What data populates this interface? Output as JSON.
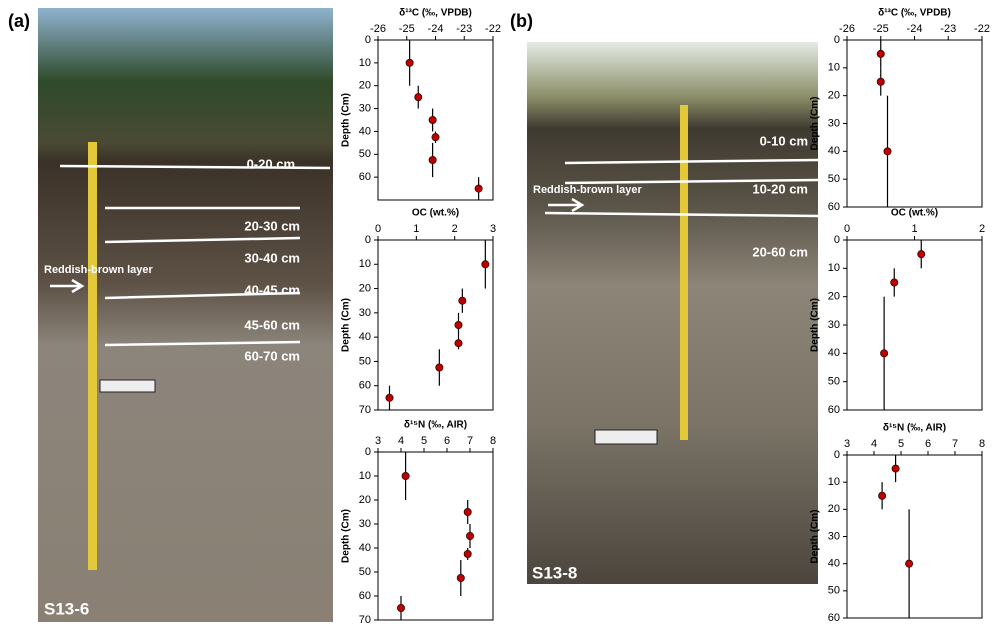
{
  "chart_data": [
    {
      "type": "scatter",
      "x_label": "δ¹³C (‰, VPDB)",
      "y_label": "Depth (Cm)",
      "xlim": [
        -26,
        -22
      ],
      "xticks": [
        -26,
        -25,
        -24,
        -23,
        -22
      ],
      "ylim": [
        0,
        70
      ],
      "yticks": [
        0,
        10,
        20,
        30,
        40,
        50,
        60
      ],
      "series": [
        {
          "color": "#c00000",
          "x": [
            -24.9,
            -24.6,
            -24.1,
            -24.0,
            -24.1,
            -22.5
          ],
          "y": [
            10,
            25,
            35,
            42.5,
            52.5,
            65
          ],
          "yerr": [
            10,
            5,
            5,
            2.5,
            7.5,
            5
          ]
        }
      ]
    },
    {
      "type": "scatter",
      "x_label": "OC (wt.%)",
      "y_label": "Depth (Cm)",
      "xlim": [
        0,
        3
      ],
      "xticks": [
        0,
        1,
        2,
        3
      ],
      "ylim": [
        0,
        70
      ],
      "yticks": [
        0,
        10,
        20,
        30,
        40,
        50,
        60,
        70
      ],
      "series": [
        {
          "color": "#c00000",
          "x": [
            2.8,
            2.2,
            2.1,
            2.1,
            1.6,
            0.3
          ],
          "y": [
            10,
            25,
            35,
            42.5,
            52.5,
            65
          ],
          "yerr": [
            10,
            5,
            5,
            2.5,
            7.5,
            5
          ]
        }
      ]
    },
    {
      "type": "scatter",
      "x_label": "δ¹⁵N (‰, AIR)",
      "y_label": "Depth (Cm)",
      "xlim": [
        3,
        8
      ],
      "xticks": [
        3,
        4,
        5,
        6,
        7,
        8
      ],
      "ylim": [
        0,
        70
      ],
      "yticks": [
        0,
        10,
        20,
        30,
        40,
        50,
        60,
        70
      ],
      "series": [
        {
          "color": "#c00000",
          "x": [
            4.2,
            6.9,
            7.0,
            6.9,
            6.6,
            4.0
          ],
          "y": [
            10,
            25,
            35,
            42.5,
            52.5,
            65
          ],
          "yerr": [
            10,
            5,
            5,
            2.5,
            7.5,
            5
          ]
        }
      ]
    },
    {
      "type": "scatter",
      "x_label": "δ¹³C (‰, VPDB)",
      "y_label": "Depth (Cm)",
      "xlim": [
        -26,
        -22
      ],
      "xticks": [
        -26,
        -25,
        -24,
        -23,
        -22
      ],
      "ylim": [
        0,
        60
      ],
      "yticks": [
        0,
        10,
        20,
        30,
        40,
        50,
        60
      ],
      "series": [
        {
          "color": "#c00000",
          "x": [
            -25.0,
            -25.0,
            -24.8
          ],
          "y": [
            5,
            15,
            40
          ],
          "yerr": [
            5,
            5,
            20
          ]
        }
      ]
    },
    {
      "type": "scatter",
      "x_label": "OC (wt.%)",
      "y_label": "Depth (Cm)",
      "xlim": [
        0,
        2
      ],
      "xticks": [
        0,
        1,
        2
      ],
      "ylim": [
        0,
        60
      ],
      "yticks": [
        0,
        10,
        20,
        30,
        40,
        50,
        60
      ],
      "series": [
        {
          "color": "#c00000",
          "x": [
            1.1,
            0.7,
            0.55
          ],
          "y": [
            5,
            15,
            40
          ],
          "yerr": [
            5,
            5,
            20
          ]
        }
      ]
    },
    {
      "type": "scatter",
      "x_label": "δ¹⁵N (‰, AIR)",
      "y_label": "Depth (Cm)",
      "xlim": [
        3,
        8
      ],
      "xticks": [
        3,
        4,
        5,
        6,
        7,
        8
      ],
      "ylim": [
        0,
        60
      ],
      "yticks": [
        0,
        10,
        20,
        30,
        40,
        50,
        60
      ],
      "series": [
        {
          "color": "#c00000",
          "x": [
            4.8,
            4.3,
            5.3
          ],
          "y": [
            5,
            15,
            40
          ],
          "yerr": [
            5,
            5,
            20
          ]
        }
      ]
    }
  ],
  "photos": [
    {
      "panel": "(a)",
      "site": "S13-6",
      "annotation": "Reddish-brown layer",
      "layers": [
        "0-20 cm",
        "20-30 cm",
        "30-40 cm",
        "40-45 cm",
        "45-60 cm",
        "60-70 cm"
      ]
    },
    {
      "panel": "(b)",
      "site": "S13-8",
      "annotation": "Reddish-brown layer",
      "layers": [
        "0-10 cm",
        "10-20 cm",
        "20-60 cm"
      ]
    }
  ]
}
